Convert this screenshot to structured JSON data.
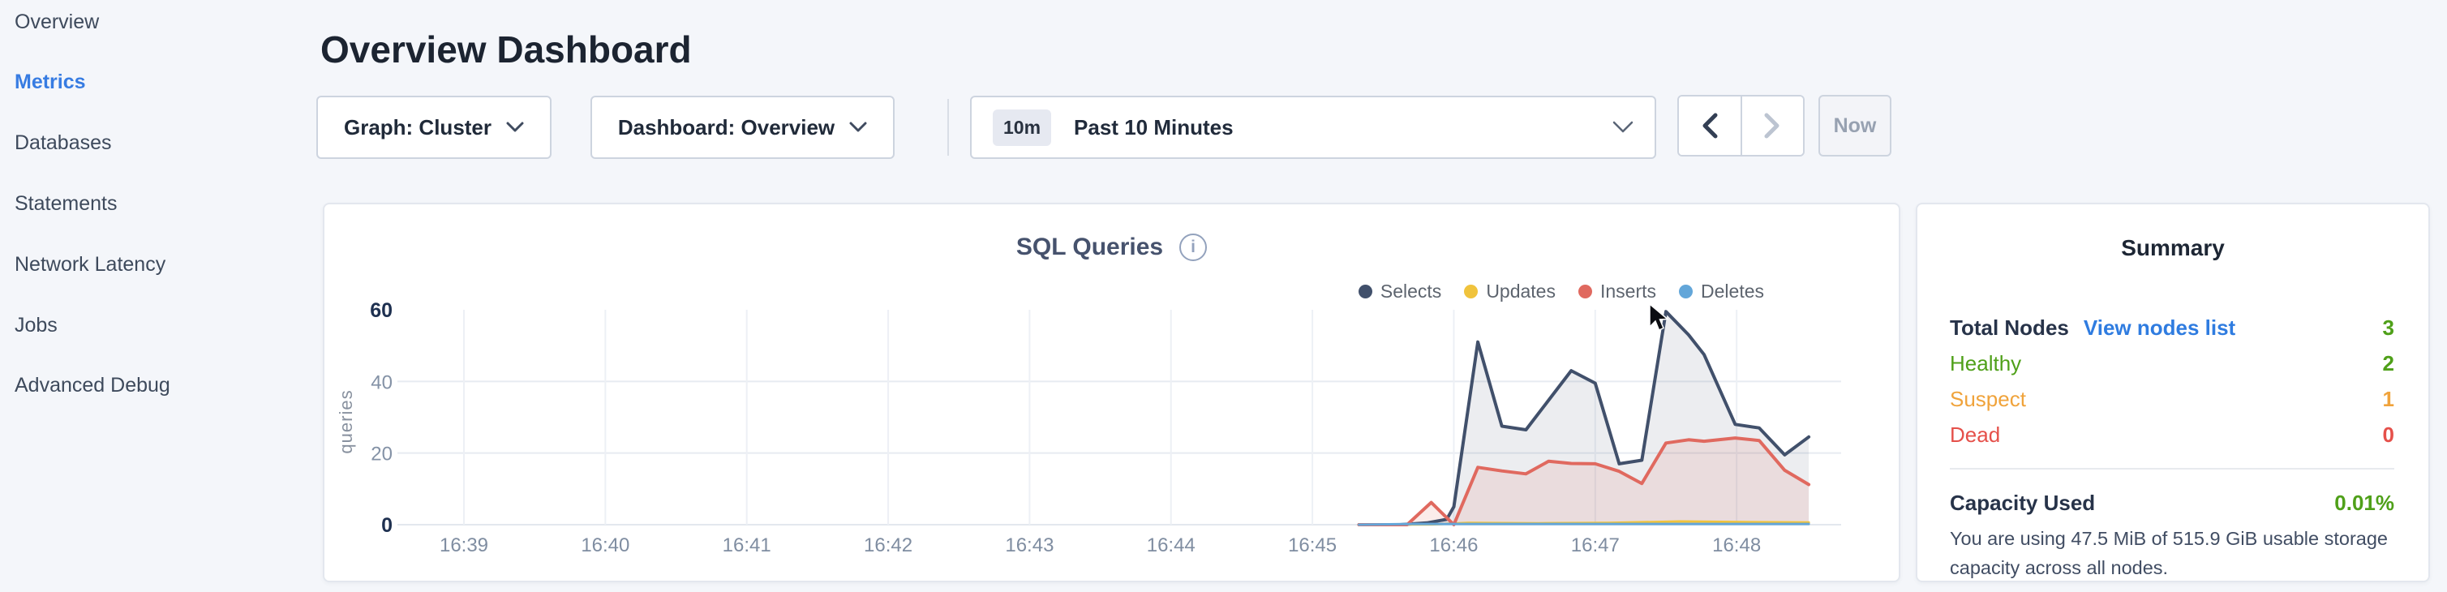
{
  "sidebar": {
    "items": [
      {
        "label": "Overview",
        "active": false
      },
      {
        "label": "Metrics",
        "active": true
      },
      {
        "label": "Databases",
        "active": false
      },
      {
        "label": "Statements",
        "active": false
      },
      {
        "label": "Network Latency",
        "active": false
      },
      {
        "label": "Jobs",
        "active": false
      },
      {
        "label": "Advanced Debug",
        "active": false
      }
    ],
    "active_color": "#377ce2"
  },
  "header": {
    "title": "Overview Dashboard"
  },
  "controls": {
    "graph_dropdown": {
      "label": "Graph: Cluster"
    },
    "dashboard_dropdown": {
      "label": "Dashboard: Overview"
    },
    "time_selector": {
      "badge": "10m",
      "label": "Past 10 Minutes"
    },
    "pager": {
      "prev_enabled": true,
      "next_enabled": false
    },
    "now_label": "Now"
  },
  "chart_data": {
    "type": "line",
    "title": "SQL Queries",
    "ylabel": "queries",
    "ylim": [
      0,
      60
    ],
    "y_ticks": [
      0,
      20,
      40,
      60
    ],
    "x_ticks": [
      "16:39",
      "16:40",
      "16:41",
      "16:42",
      "16:43",
      "16:44",
      "16:45",
      "16:46",
      "16:47",
      "16:48"
    ],
    "x_unit": "minutes after 16:39",
    "grid": true,
    "legend_position": "top-right",
    "series": [
      {
        "name": "Selects",
        "color": "#41506b",
        "fill": "rgba(65,80,107,0.10)",
        "width": 4,
        "points": [
          [
            6.33,
            0
          ],
          [
            6.62,
            0
          ],
          [
            6.81,
            0.5
          ],
          [
            6.95,
            1.5
          ],
          [
            7.0,
            5
          ],
          [
            7.17,
            51
          ],
          [
            7.34,
            27.5
          ],
          [
            7.51,
            26.5
          ],
          [
            7.83,
            43
          ],
          [
            8.0,
            39.5
          ],
          [
            8.17,
            17
          ],
          [
            8.33,
            18
          ],
          [
            8.5,
            59.5
          ],
          [
            8.66,
            53
          ],
          [
            8.77,
            47.5
          ],
          [
            8.99,
            28
          ],
          [
            9.16,
            27
          ],
          [
            9.34,
            19.5
          ],
          [
            9.51,
            24.5
          ]
        ]
      },
      {
        "name": "Updates",
        "color": "#f0c33c",
        "fill": null,
        "width": 3,
        "points": [
          [
            6.33,
            0
          ],
          [
            6.85,
            0.1
          ],
          [
            7.1,
            0.5
          ],
          [
            7.6,
            0.4
          ],
          [
            8.1,
            0.5
          ],
          [
            8.6,
            0.9
          ],
          [
            9.1,
            0.7
          ],
          [
            9.51,
            0.6
          ]
        ]
      },
      {
        "name": "Inserts",
        "color": "#e0695f",
        "fill": "rgba(224,105,95,0.13)",
        "width": 4,
        "points": [
          [
            6.33,
            0
          ],
          [
            6.67,
            0
          ],
          [
            6.84,
            6.2
          ],
          [
            7.0,
            0
          ],
          [
            7.17,
            16
          ],
          [
            7.34,
            15
          ],
          [
            7.51,
            14.2
          ],
          [
            7.67,
            17.7
          ],
          [
            7.83,
            17.1
          ],
          [
            8.0,
            17
          ],
          [
            8.17,
            14.9
          ],
          [
            8.33,
            11.5
          ],
          [
            8.5,
            22.8
          ],
          [
            8.66,
            23.7
          ],
          [
            8.77,
            23.3
          ],
          [
            8.99,
            24.2
          ],
          [
            9.16,
            23.5
          ],
          [
            9.34,
            15.2
          ],
          [
            9.51,
            11.2
          ]
        ]
      },
      {
        "name": "Deletes",
        "color": "#63a6d9",
        "fill": null,
        "width": 3,
        "points": [
          [
            6.33,
            0
          ],
          [
            6.7,
            0.2
          ],
          [
            9.51,
            0.2
          ]
        ]
      }
    ]
  },
  "summary": {
    "title": "Summary",
    "rows": [
      {
        "label": "Total Nodes",
        "label_color": "#273349",
        "bold": true,
        "link": "View nodes list",
        "value": "3",
        "value_color": "#4fa019"
      },
      {
        "label": "Healthy",
        "label_color": "#4fa019",
        "bold": false,
        "link": null,
        "value": "2",
        "value_color": "#4fa019"
      },
      {
        "label": "Suspect",
        "label_color": "#f0a33b",
        "bold": false,
        "link": null,
        "value": "1",
        "value_color": "#f0a33b"
      },
      {
        "label": "Dead",
        "label_color": "#e5504a",
        "bold": false,
        "link": null,
        "value": "0",
        "value_color": "#e5504a"
      }
    ],
    "capacity": {
      "label": "Capacity Used",
      "value": "0.01%",
      "value_color": "#4fa019"
    },
    "capacity_description": "You are using 47.5 MiB of 515.9 GiB usable storage capacity across all nodes."
  }
}
